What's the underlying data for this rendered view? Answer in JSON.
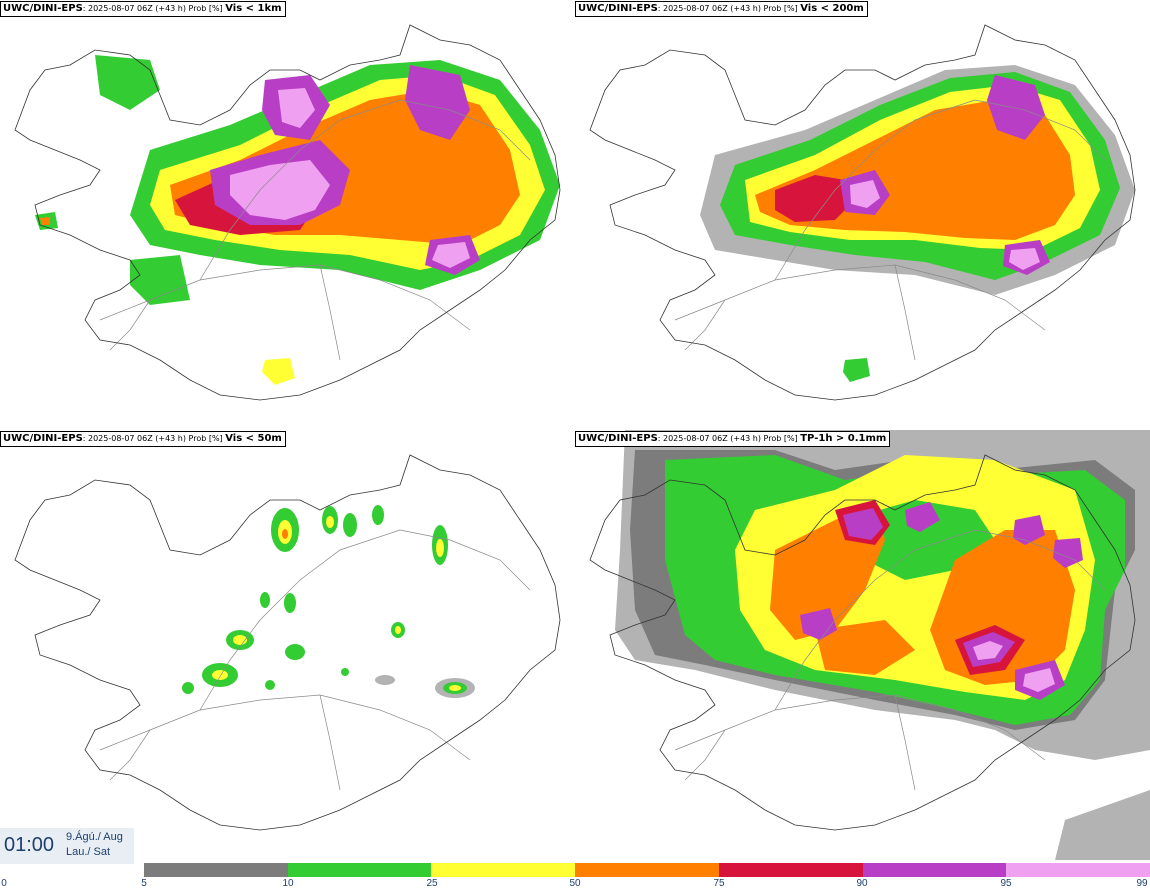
{
  "panels": [
    {
      "source": "UWC/DINI-EPS",
      "subtitle": ": 2025-08-07 06Z (+43 h) Prob [%] ",
      "variable": "Vis < 1km"
    },
    {
      "source": "UWC/DINI-EPS",
      "subtitle": ": 2025-08-07 06Z (+43 h) Prob [%] ",
      "variable": "Vis < 200m"
    },
    {
      "source": "UWC/DINI-EPS",
      "subtitle": ": 2025-08-07 06Z (+43 h) Prob [%] ",
      "variable": "Vis < 50m"
    },
    {
      "source": "UWC/DINI-EPS",
      "subtitle": ": 2025-08-07 06Z (+43 h) Prob [%] ",
      "variable": "TP-1h > 0.1mm"
    }
  ],
  "valid_time": {
    "clock": "01:00",
    "date": "9.Ágú./ Aug",
    "day": "Lau./ Sat"
  },
  "colorbar": {
    "colors": [
      "#b3b3b3",
      "#7c7c7c",
      "#33cc33",
      "#ffff33",
      "#ff7f00",
      "#d7153c",
      "#b93ec6",
      "#f0a0f0"
    ],
    "ticks": [
      "0",
      "5",
      "10",
      "25",
      "50",
      "75",
      "90",
      "95",
      "99"
    ]
  },
  "palette": {
    "coast": "#333333",
    "roads": "#8a8a8a",
    "land": "#ffffff"
  }
}
